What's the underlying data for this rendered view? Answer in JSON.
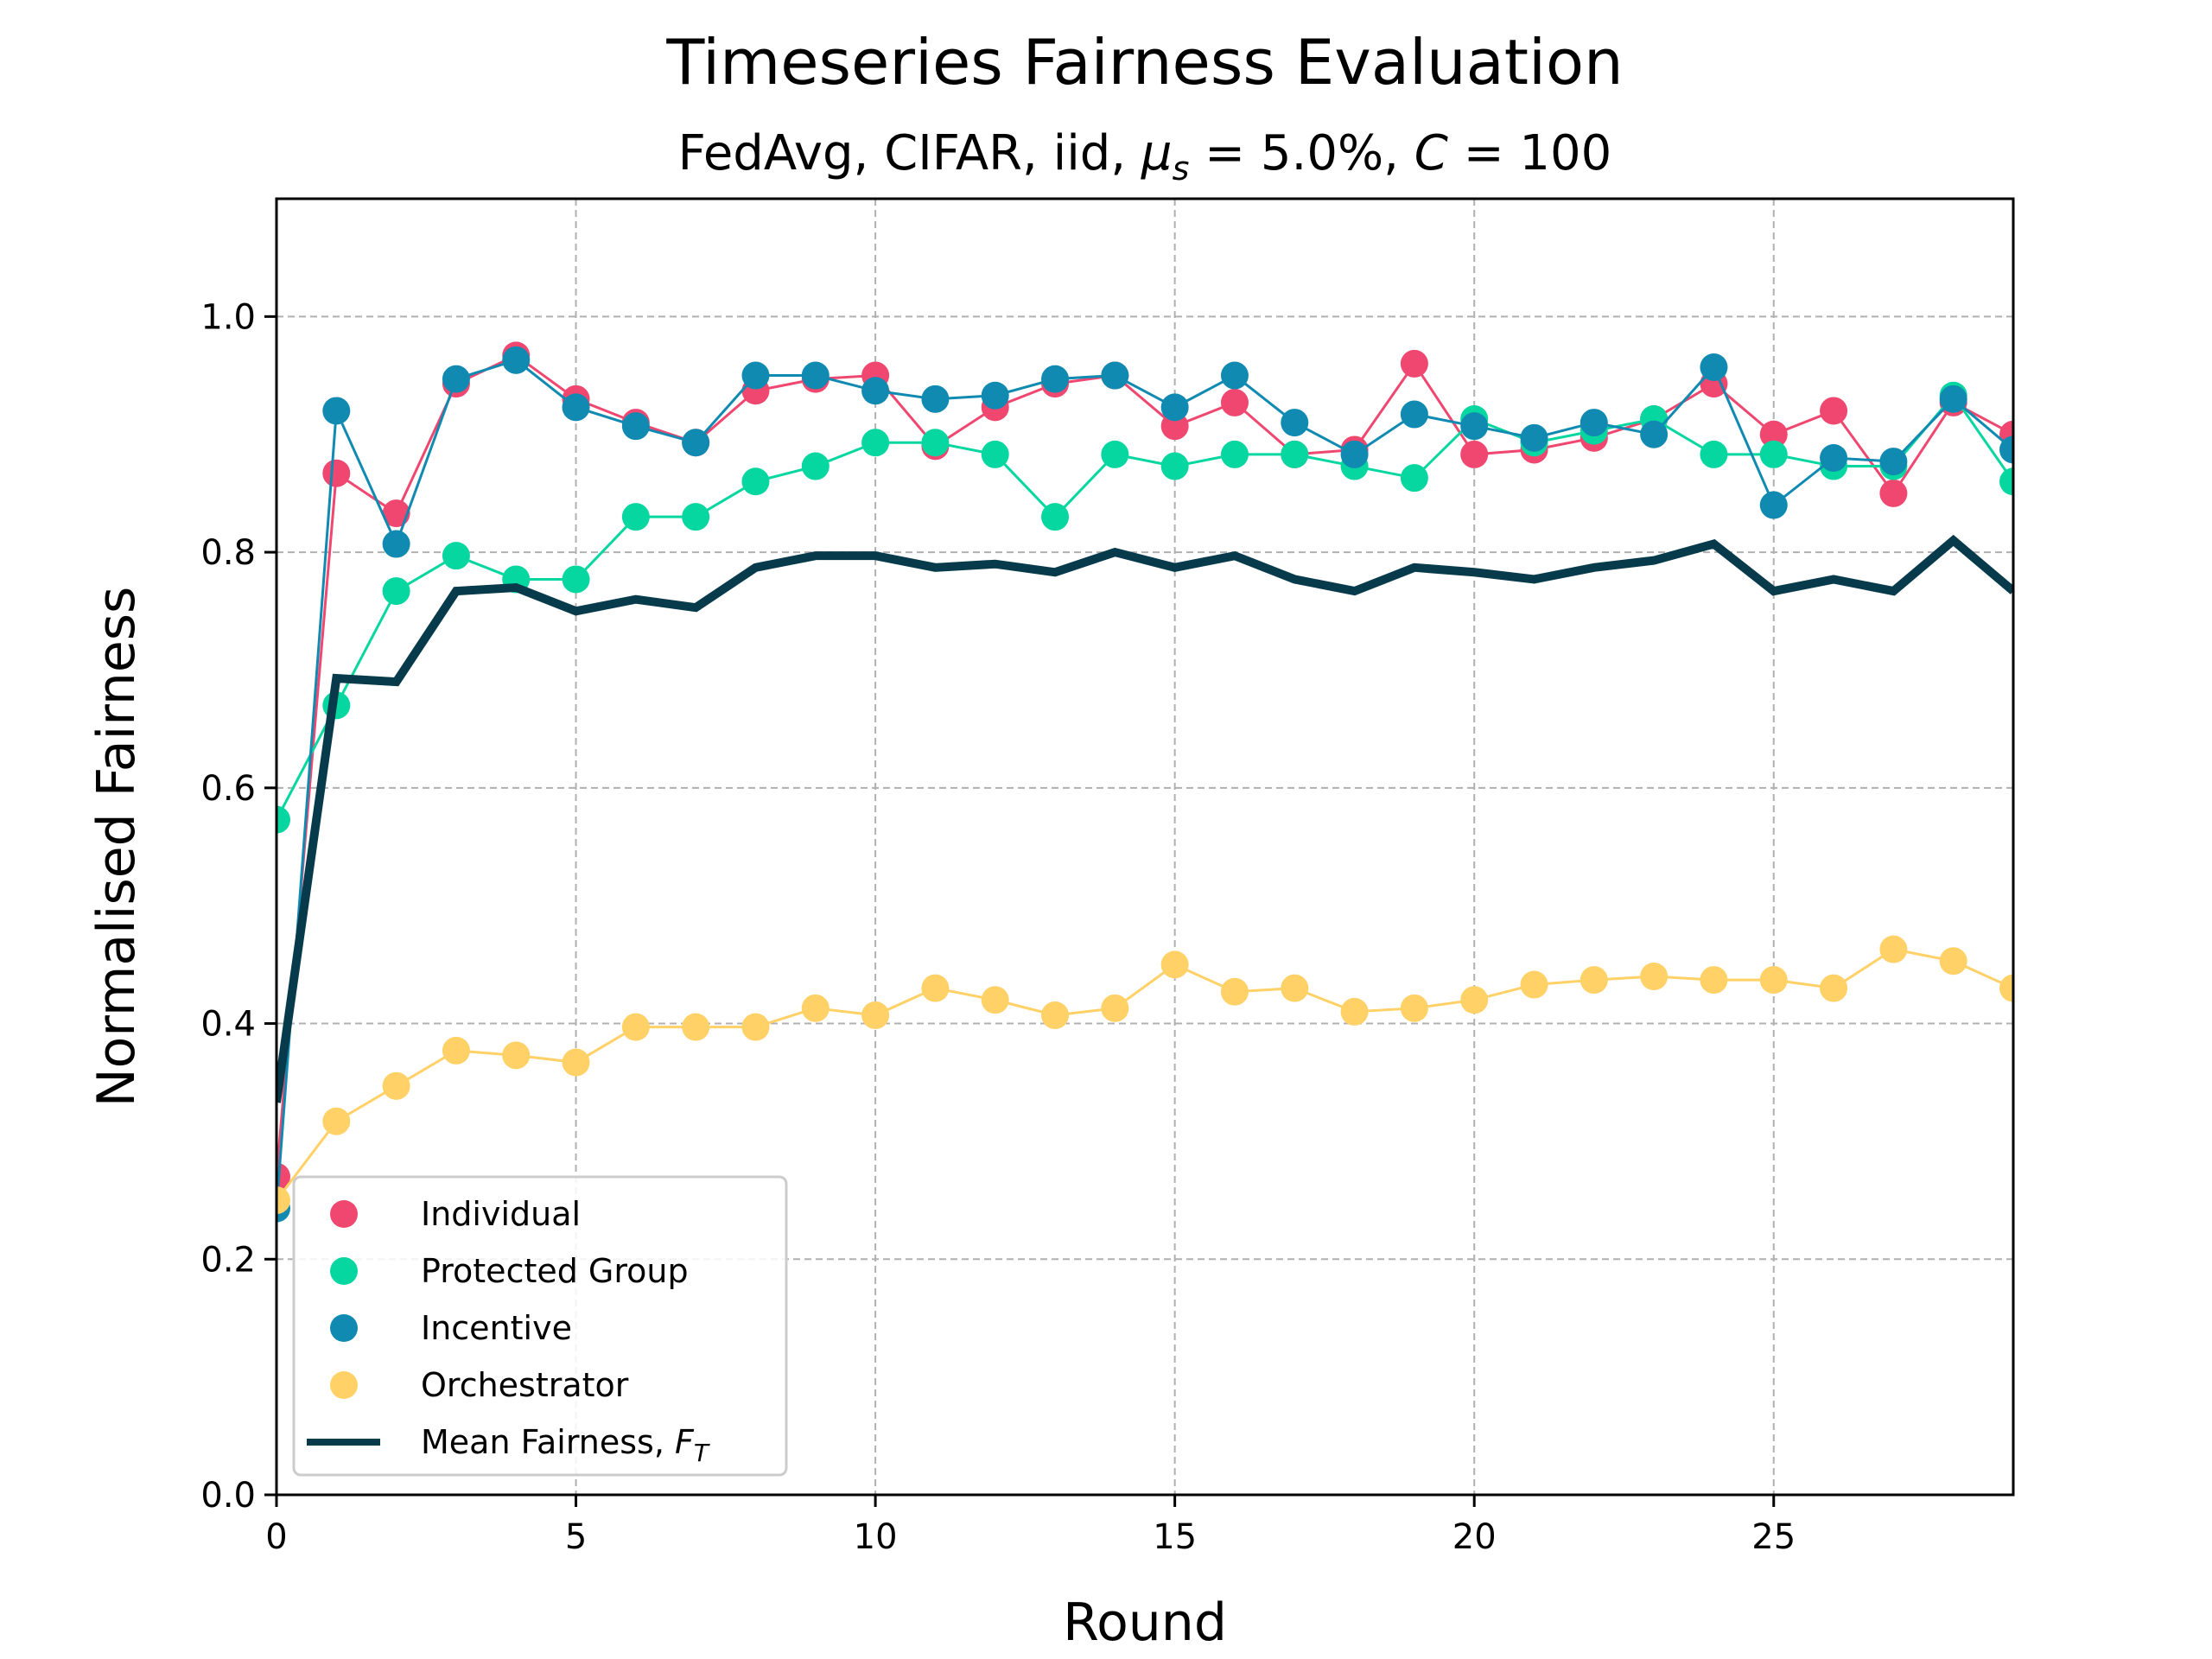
{
  "chart_data": {
    "type": "line",
    "title": "Timeseries Fairness Evaluation",
    "subtitle_parts": [
      "FedAvg, CIFAR, iid, ",
      "μ",
      "s",
      " = 5.0%, ",
      "C",
      " = 100"
    ],
    "xlabel": "Round",
    "ylabel": "Normalised Fairness",
    "xlim": [
      0,
      29
    ],
    "ylim": [
      0,
      1.1
    ],
    "xticks": [
      0,
      5,
      10,
      15,
      20,
      25
    ],
    "xtick_labels": [
      "0",
      "5",
      "10",
      "15",
      "20",
      "25"
    ],
    "yticks": [
      0,
      0.2,
      0.4,
      0.6,
      0.8,
      1.0
    ],
    "ytick_labels": [
      "0.0",
      "0.2",
      "0.4",
      "0.6",
      "0.8",
      "1.0"
    ],
    "grid": true,
    "legend_position": "lower-left",
    "x": [
      0,
      1,
      2,
      3,
      4,
      5,
      6,
      7,
      8,
      9,
      10,
      11,
      12,
      13,
      14,
      15,
      16,
      17,
      18,
      19,
      20,
      21,
      22,
      23,
      24,
      25,
      26,
      27,
      28,
      29
    ],
    "series": [
      {
        "name": "Individual",
        "color": "#ef476f",
        "marker": "circle",
        "values": [
          0.27,
          0.867,
          0.833,
          0.943,
          0.967,
          0.93,
          0.91,
          0.893,
          0.937,
          0.947,
          0.95,
          0.89,
          0.923,
          0.943,
          0.95,
          0.907,
          0.927,
          0.883,
          0.887,
          0.96,
          0.883,
          0.887,
          0.897,
          0.913,
          0.943,
          0.9,
          0.92,
          0.85,
          0.927,
          0.9
        ]
      },
      {
        "name": "Protected Group",
        "color": "#06d6a0",
        "marker": "circle",
        "values": [
          0.573,
          0.67,
          0.767,
          0.797,
          0.777,
          0.777,
          0.83,
          0.83,
          0.86,
          0.873,
          0.893,
          0.893,
          0.883,
          0.83,
          0.883,
          0.873,
          0.883,
          0.883,
          0.873,
          0.863,
          0.913,
          0.893,
          0.903,
          0.913,
          0.883,
          0.883,
          0.873,
          0.873,
          0.933,
          0.86
        ]
      },
      {
        "name": "Incentive",
        "color": "#118ab2",
        "marker": "circle",
        "values": [
          0.243,
          0.92,
          0.807,
          0.947,
          0.963,
          0.923,
          0.907,
          0.893,
          0.95,
          0.95,
          0.937,
          0.93,
          0.933,
          0.947,
          0.95,
          0.923,
          0.95,
          0.91,
          0.883,
          0.917,
          0.907,
          0.897,
          0.91,
          0.9,
          0.957,
          0.84,
          0.88,
          0.877,
          0.93,
          0.887
        ]
      },
      {
        "name": "Orchestrator",
        "color": "#ffd166",
        "marker": "circle",
        "values": [
          0.25,
          0.317,
          0.347,
          0.377,
          0.373,
          0.367,
          0.397,
          0.397,
          0.397,
          0.413,
          0.407,
          0.43,
          0.42,
          0.407,
          0.413,
          0.45,
          0.427,
          0.43,
          0.41,
          0.413,
          0.42,
          0.433,
          0.437,
          0.44,
          0.437,
          0.437,
          0.43,
          0.463,
          0.453,
          0.43
        ]
      },
      {
        "name": "Mean Fairness, ",
        "name_sym": "F",
        "name_sub": "T",
        "color": "#073b4c",
        "marker": "none",
        "values": [
          0.333,
          0.693,
          0.69,
          0.767,
          0.77,
          0.75,
          0.76,
          0.753,
          0.787,
          0.797,
          0.797,
          0.787,
          0.79,
          0.783,
          0.8,
          0.787,
          0.797,
          0.777,
          0.767,
          0.787,
          0.783,
          0.777,
          0.787,
          0.793,
          0.807,
          0.767,
          0.777,
          0.767,
          0.81,
          0.767
        ]
      }
    ]
  }
}
